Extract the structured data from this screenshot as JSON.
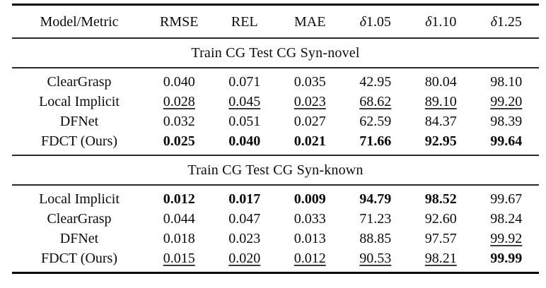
{
  "table": {
    "columns": [
      "Model/Metric",
      "RMSE",
      "REL",
      "MAE",
      "δ1.05",
      "δ1.10",
      "δ1.25"
    ],
    "style_legend": {
      "n": "normal",
      "b": "bold-best",
      "u": "underline-second-best"
    },
    "sections": [
      {
        "title": "Train CG Test CG Syn-novel",
        "rows": [
          {
            "model": "ClearGrasp",
            "values": [
              "0.040",
              "0.071",
              "0.035",
              "42.95",
              "80.04",
              "98.10"
            ],
            "styles": [
              "n",
              "n",
              "n",
              "n",
              "n",
              "n"
            ]
          },
          {
            "model": "Local Implicit",
            "values": [
              "0.028",
              "0.045",
              "0.023",
              "68.62",
              "89.10",
              "99.20"
            ],
            "styles": [
              "u",
              "u",
              "u",
              "u",
              "u",
              "u"
            ]
          },
          {
            "model": "DFNet",
            "values": [
              "0.032",
              "0.051",
              "0.027",
              "62.59",
              "84.37",
              "98.39"
            ],
            "styles": [
              "n",
              "n",
              "n",
              "n",
              "n",
              "n"
            ]
          },
          {
            "model": "FDCT (Ours)",
            "values": [
              "0.025",
              "0.040",
              "0.021",
              "71.66",
              "92.95",
              "99.64"
            ],
            "styles": [
              "b",
              "b",
              "b",
              "b",
              "b",
              "b"
            ]
          }
        ]
      },
      {
        "title": "Train CG Test CG Syn-known",
        "rows": [
          {
            "model": "Local Implicit",
            "values": [
              "0.012",
              "0.017",
              "0.009",
              "94.79",
              "98.52",
              "99.67"
            ],
            "styles": [
              "b",
              "b",
              "b",
              "b",
              "b",
              "n"
            ]
          },
          {
            "model": "ClearGrasp",
            "values": [
              "0.044",
              "0.047",
              "0.033",
              "71.23",
              "92.60",
              "98.24"
            ],
            "styles": [
              "n",
              "n",
              "n",
              "n",
              "n",
              "n"
            ]
          },
          {
            "model": "DFNet",
            "values": [
              "0.018",
              "0.023",
              "0.013",
              "88.85",
              "97.57",
              "99.92"
            ],
            "styles": [
              "n",
              "n",
              "n",
              "n",
              "n",
              "u"
            ]
          },
          {
            "model": "FDCT (Ours)",
            "values": [
              "0.015",
              "0.020",
              "0.012",
              "90.53",
              "98.21",
              "99.99"
            ],
            "styles": [
              "u",
              "u",
              "u",
              "u",
              "u",
              "b"
            ]
          }
        ]
      }
    ],
    "colors": {
      "text": "#0b0b0b",
      "rule": "#000000",
      "background": "#ffffff"
    }
  }
}
